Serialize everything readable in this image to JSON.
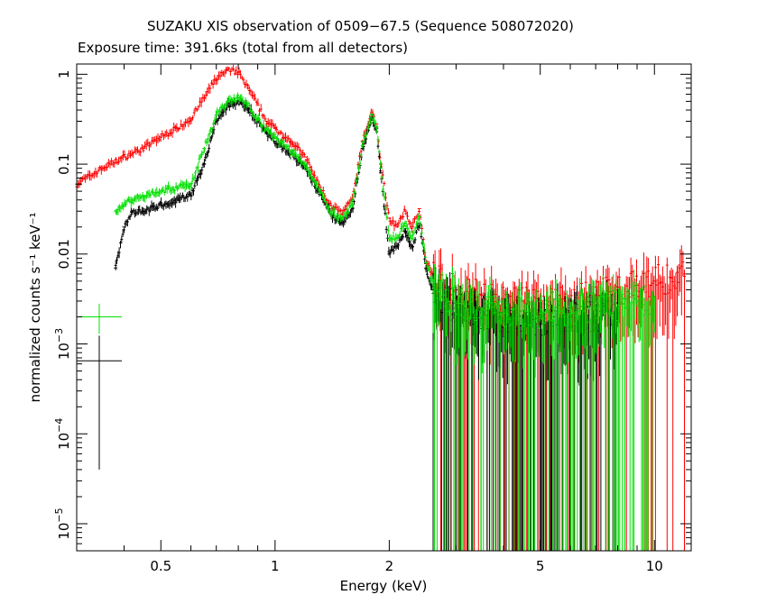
{
  "chart_data": {
    "type": "scatter",
    "title": "SUZAKU XIS observation of 0509−67.5 (Sequence 508072020)",
    "subtitle": "Exposure time: 391.6ks (total from all detectors)",
    "xlabel": "Energy (keV)",
    "ylabel": "normalized counts s⁻¹ keV⁻¹",
    "x_scale": "log",
    "y_scale": "log",
    "xlim": [
      0.3,
      12.5
    ],
    "ylim": [
      5e-06,
      1.3
    ],
    "grid": false,
    "x_ticks": [
      {
        "value": 0.5,
        "label": "0.5"
      },
      {
        "value": 1,
        "label": "1"
      },
      {
        "value": 2,
        "label": "2"
      },
      {
        "value": 5,
        "label": "5"
      },
      {
        "value": 10,
        "label": "10"
      }
    ],
    "y_ticks": [
      {
        "value": 1,
        "mantissa": "1",
        "exponent": ""
      },
      {
        "value": 0.1,
        "mantissa": "0.1",
        "exponent": ""
      },
      {
        "value": 0.01,
        "mantissa": "0.01",
        "exponent": ""
      },
      {
        "value": 0.001,
        "mantissa": "10",
        "exponent": "−3"
      },
      {
        "value": 0.0001,
        "mantissa": "10",
        "exponent": "−4"
      },
      {
        "value": 1e-05,
        "mantissa": "10",
        "exponent": "−5"
      }
    ],
    "series": [
      {
        "color": "#ff0000",
        "x": [
          0.3,
          0.35,
          0.4,
          0.45,
          0.5,
          0.55,
          0.6,
          0.65,
          0.7,
          0.75,
          0.8,
          0.85,
          0.9,
          0.95,
          1.0,
          1.1,
          1.2,
          1.3,
          1.4,
          1.5,
          1.6,
          1.7,
          1.8,
          1.85,
          1.9,
          2.0,
          2.1,
          2.2,
          2.3,
          2.4,
          2.5,
          2.6,
          2.8,
          3.0,
          3.5,
          4.0,
          4.5,
          5.0,
          6.0,
          7.0,
          8.0,
          9.0,
          10.0,
          11.0,
          12.0
        ],
        "y": [
          0.06,
          0.09,
          0.12,
          0.15,
          0.2,
          0.25,
          0.32,
          0.55,
          0.9,
          1.1,
          1.05,
          0.7,
          0.45,
          0.3,
          0.25,
          0.18,
          0.12,
          0.06,
          0.035,
          0.028,
          0.04,
          0.18,
          0.38,
          0.28,
          0.1,
          0.025,
          0.02,
          0.03,
          0.02,
          0.032,
          0.008,
          0.006,
          0.0045,
          0.004,
          0.0035,
          0.0032,
          0.003,
          0.0028,
          0.003,
          0.0035,
          0.004,
          0.0045,
          0.005,
          0.0055,
          0.006
        ]
      },
      {
        "color": "#000000",
        "x": [
          0.38,
          0.4,
          0.42,
          0.45,
          0.5,
          0.55,
          0.6,
          0.65,
          0.7,
          0.75,
          0.8,
          0.85,
          0.9,
          0.95,
          1.0,
          1.1,
          1.2,
          1.3,
          1.4,
          1.5,
          1.6,
          1.7,
          1.8,
          1.85,
          1.9,
          2.0,
          2.1,
          2.2,
          2.3,
          2.4,
          2.5,
          2.6,
          2.8,
          3.0,
          3.5,
          4.0,
          5.0,
          6.0,
          7.0,
          8.0
        ],
        "y": [
          0.007,
          0.02,
          0.03,
          0.03,
          0.035,
          0.04,
          0.045,
          0.1,
          0.3,
          0.45,
          0.5,
          0.42,
          0.3,
          0.22,
          0.18,
          0.13,
          0.09,
          0.05,
          0.028,
          0.022,
          0.032,
          0.15,
          0.33,
          0.25,
          0.08,
          0.01,
          0.012,
          0.018,
          0.012,
          0.022,
          0.007,
          0.004,
          0.003,
          0.0025,
          0.002,
          0.0018,
          0.0018,
          0.002,
          0.002,
          0.0022
        ]
      },
      {
        "color": "#00e000",
        "x": [
          0.38,
          0.4,
          0.42,
          0.45,
          0.5,
          0.55,
          0.6,
          0.65,
          0.7,
          0.75,
          0.8,
          0.85,
          0.9,
          0.95,
          1.0,
          1.1,
          1.2,
          1.3,
          1.4,
          1.5,
          1.6,
          1.7,
          1.8,
          1.85,
          1.9,
          2.0,
          2.1,
          2.2,
          2.3,
          2.4,
          2.5,
          2.6,
          2.8,
          3.0,
          3.5,
          4.0,
          5.0,
          6.0,
          7.0,
          8.0,
          9.0,
          10.0
        ],
        "y": [
          0.03,
          0.035,
          0.04,
          0.045,
          0.05,
          0.055,
          0.06,
          0.15,
          0.35,
          0.5,
          0.55,
          0.45,
          0.32,
          0.24,
          0.2,
          0.14,
          0.1,
          0.055,
          0.03,
          0.024,
          0.035,
          0.16,
          0.35,
          0.26,
          0.09,
          0.015,
          0.015,
          0.022,
          0.015,
          0.026,
          0.008,
          0.005,
          0.0035,
          0.003,
          0.0025,
          0.0022,
          0.0022,
          0.0024,
          0.0025,
          0.0027,
          0.003,
          0.0032
        ]
      }
    ],
    "legend_markers": [
      {
        "color": "#00e000",
        "y": 0.002,
        "y_err": [
          0.0013,
          0.0028
        ]
      },
      {
        "color": "#000000",
        "y": 0.00065,
        "y_err": 4e-05
      }
    ]
  }
}
